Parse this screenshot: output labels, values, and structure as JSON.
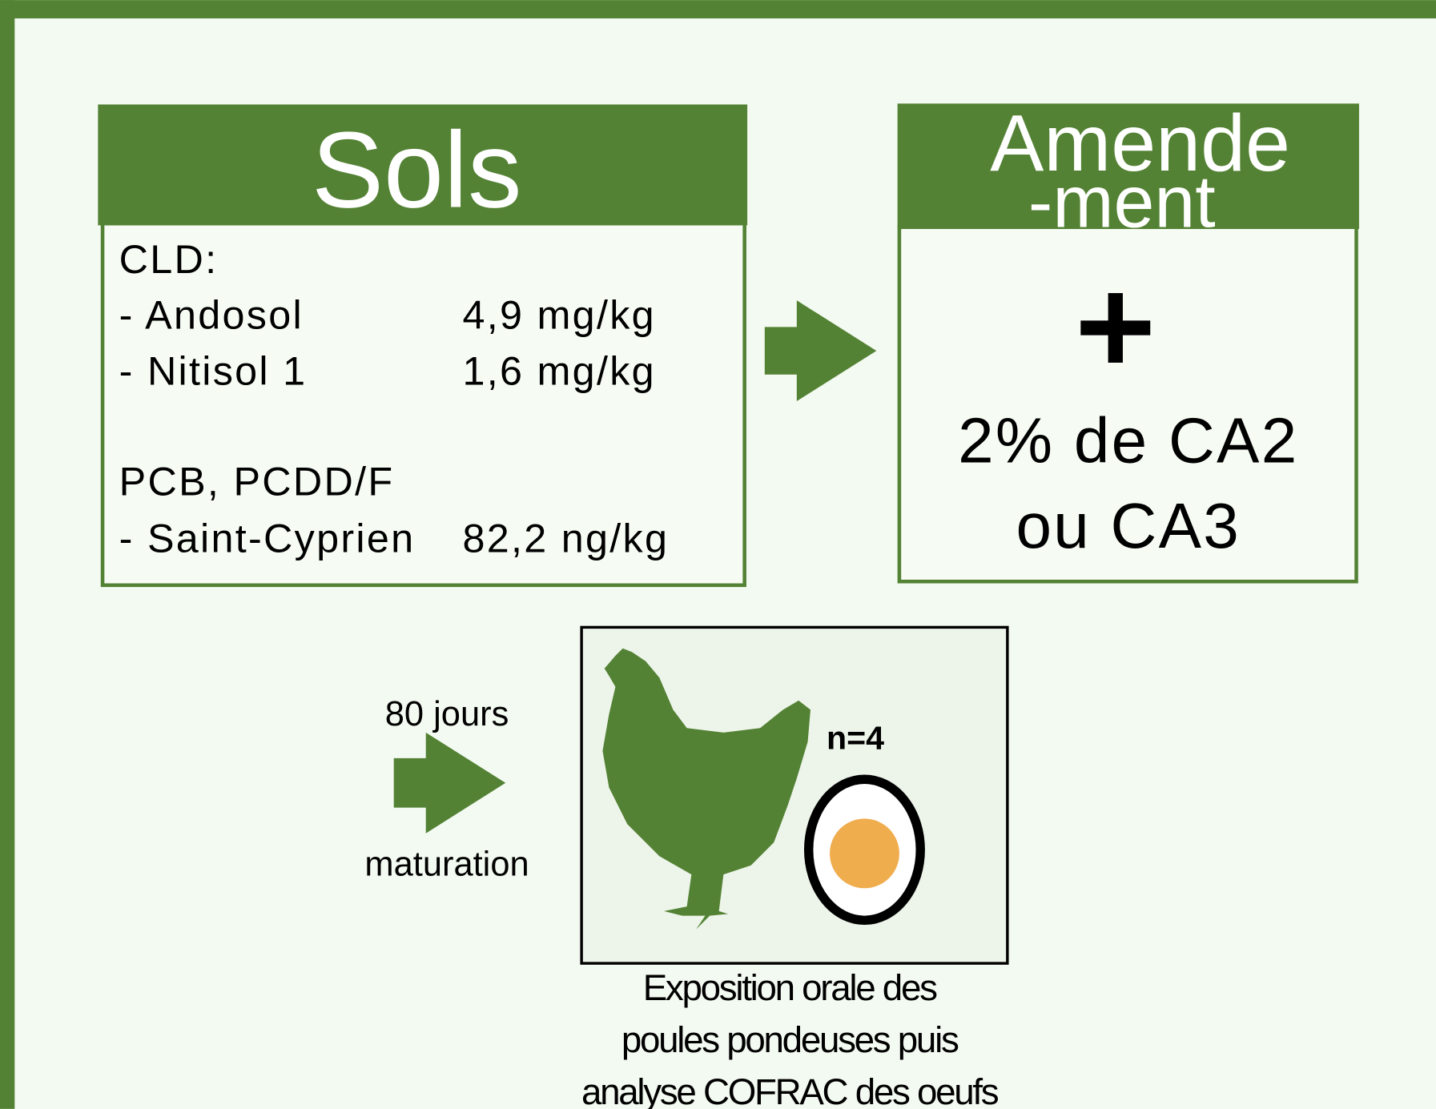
{
  "soils": {
    "title": "Sols",
    "heading1": "CLD:",
    "rows1": [
      [
        "- Andosol",
        "4,9 mg/kg"
      ],
      [
        "- Nitisol 1",
        "1,6 mg/kg"
      ]
    ],
    "heading2": "PCB, PCDD/F",
    "rows2": [
      [
        "- Saint-Cyprien",
        "82,2 ng/kg"
      ]
    ]
  },
  "amendment": {
    "title_lines": [
      "Amende",
      "-ment"
    ],
    "text_lines": [
      "2% de CA2",
      "ou CA3"
    ]
  },
  "maturation": {
    "above": "80 jours",
    "below": "maturation"
  },
  "exposure": {
    "count": "n=4",
    "caption_lines": [
      "Exposition orale des",
      "poules pondeuses puis",
      "analyse COFRAC des oeufs"
    ]
  }
}
